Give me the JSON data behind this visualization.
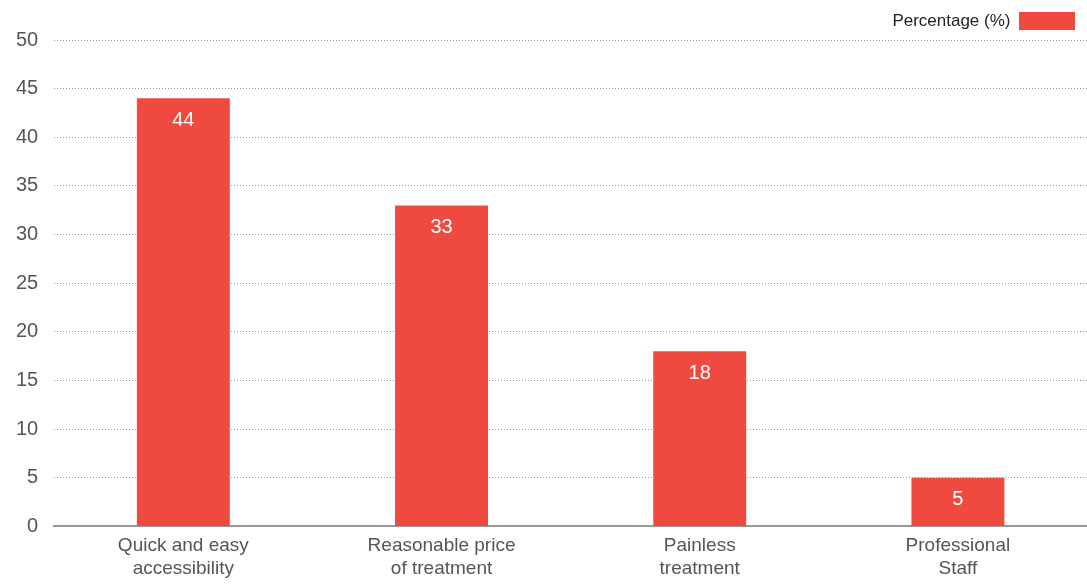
{
  "chart_data": {
    "type": "bar",
    "categories": [
      "Quick and easy accessibility",
      "Reasonable price of treatment",
      "Painless treatment",
      "Professional Staff"
    ],
    "series": [
      {
        "name": "Percentage (%)",
        "color": "#ef4a3f",
        "values": [
          44,
          33,
          18,
          5
        ]
      }
    ],
    "ylim": [
      0,
      50
    ],
    "yticks": [
      0,
      5,
      10,
      15,
      20,
      25,
      30,
      35,
      40,
      45,
      50
    ],
    "grid": "y",
    "legend": "top right",
    "data_labels": true
  }
}
